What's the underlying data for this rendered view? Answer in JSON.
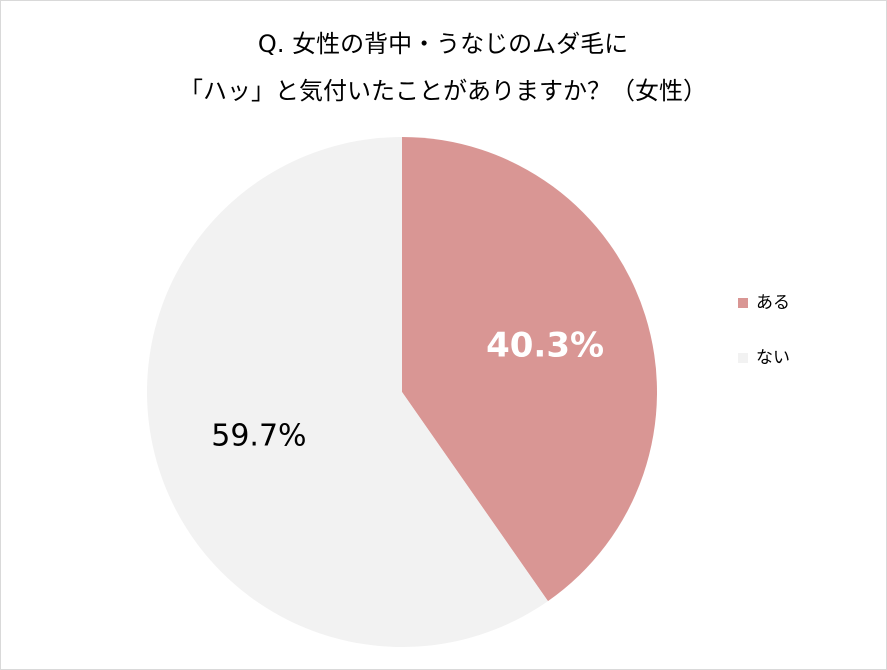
{
  "chart_data": {
    "type": "pie",
    "title": [
      "Q. 女性の背中・うなじのムダ毛に",
      "「ハッ」と気付いたことがありますか？（女性）"
    ],
    "categories": [
      "ある",
      "ない"
    ],
    "values": [
      40.3,
      59.7
    ],
    "value_labels": [
      "40.3%",
      "59.7%"
    ],
    "colors": [
      "#d99694",
      "#f2f2f2"
    ],
    "label_colors": [
      "#ffffff",
      "#000000"
    ],
    "legend": "right"
  }
}
